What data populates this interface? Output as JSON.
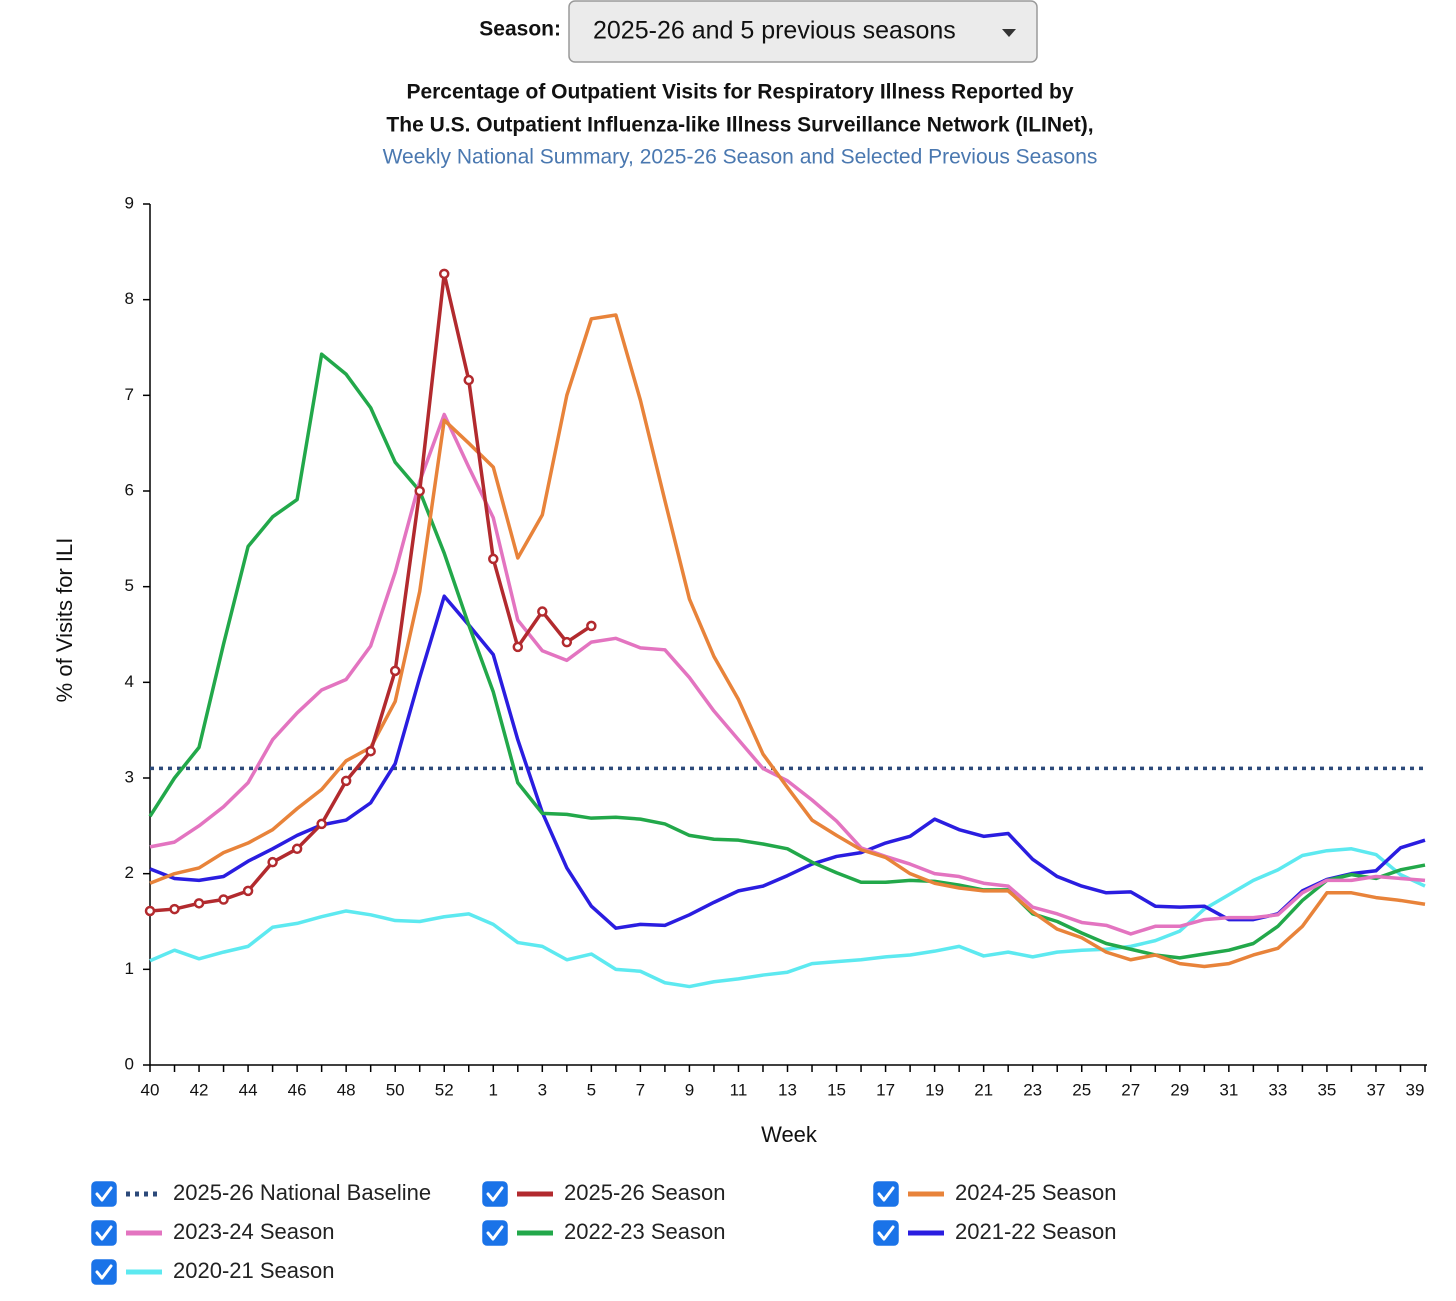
{
  "controls": {
    "season_label": "Season:",
    "season_value": "2025-26 and 5 previous seasons"
  },
  "chart_data": {
    "type": "line",
    "title": [
      "Percentage of Outpatient Visits for Respiratory Illness Reported by",
      "The U.S. Outpatient Influenza-like Illness Surveillance Network (ILINet),"
    ],
    "subtitle": "Weekly National Summary, 2025-26 Season and Selected Previous Seasons",
    "x_label": "Week",
    "y_label": "% of Visits for ILI",
    "categories": [
      "40",
      null,
      "42",
      null,
      "44",
      null,
      "46",
      null,
      "48",
      null,
      "50",
      null,
      "52",
      null,
      "1",
      null,
      "3",
      null,
      "5",
      null,
      "7",
      null,
      "9",
      null,
      "11",
      null,
      "13",
      null,
      "15",
      null,
      "17",
      null,
      "19",
      null,
      "21",
      null,
      "23",
      null,
      "25",
      null,
      "27",
      null,
      "29",
      null,
      "31",
      null,
      "33",
      null,
      "35",
      null,
      "37",
      null,
      "39"
    ],
    "ylim": [
      0,
      9
    ],
    "yticks": [
      0,
      1,
      2,
      3,
      4,
      5,
      6,
      7,
      8,
      9
    ],
    "baseline": {
      "name": "2025-26 National Baseline",
      "color": "#2c4a7a",
      "value": 3.1,
      "checked": true
    },
    "series": [
      {
        "name": "2025-26 Season",
        "color": "#b22a2e",
        "markers": true,
        "checked": true,
        "values": [
          1.61,
          1.63,
          1.69,
          1.73,
          1.82,
          2.12,
          2.26,
          2.52,
          2.97,
          3.28,
          4.12,
          6.0,
          8.27,
          7.16,
          5.29,
          4.37,
          4.74,
          4.42,
          4.59,
          null,
          null,
          null,
          null,
          null,
          null,
          null,
          null,
          null,
          null,
          null,
          null,
          null,
          null,
          null,
          null,
          null,
          null,
          null,
          null,
          null,
          null,
          null,
          null,
          null,
          null,
          null,
          null,
          null,
          null,
          null,
          null,
          null,
          null
        ]
      },
      {
        "name": "2024-25 Season",
        "color": "#e8833a",
        "checked": true,
        "values": [
          1.9,
          2.0,
          2.06,
          2.22,
          2.32,
          2.46,
          2.68,
          2.88,
          3.18,
          3.32,
          3.8,
          4.95,
          6.74,
          6.5,
          6.25,
          5.3,
          5.75,
          7.0,
          7.8,
          7.84,
          6.95,
          5.9,
          4.87,
          4.27,
          3.82,
          3.25,
          2.9,
          2.56,
          2.4,
          2.25,
          2.17,
          2.0,
          1.9,
          1.85,
          1.82,
          1.82,
          1.6,
          1.42,
          1.33,
          1.18,
          1.1,
          1.15,
          1.06,
          1.03,
          1.06,
          1.15,
          1.22,
          1.45,
          1.8,
          1.8,
          1.75,
          1.72,
          1.68
        ]
      },
      {
        "name": "2023-24 Season",
        "color": "#e374c0",
        "checked": true,
        "values": [
          2.28,
          2.33,
          2.5,
          2.7,
          2.95,
          3.4,
          3.68,
          3.92,
          4.03,
          4.38,
          5.15,
          6.1,
          6.8,
          6.25,
          5.72,
          4.65,
          4.33,
          4.23,
          4.42,
          4.46,
          4.36,
          4.34,
          4.05,
          3.7,
          3.4,
          3.1,
          2.97,
          2.77,
          2.55,
          2.27,
          2.18,
          2.1,
          2.0,
          1.97,
          1.9,
          1.87,
          1.65,
          1.58,
          1.49,
          1.46,
          1.37,
          1.45,
          1.45,
          1.52,
          1.54,
          1.54,
          1.57,
          1.8,
          1.93,
          1.93,
          1.97,
          1.95,
          1.93
        ]
      },
      {
        "name": "2022-23 Season",
        "color": "#22a84a",
        "checked": true,
        "values": [
          2.6,
          3.0,
          3.32,
          4.4,
          5.42,
          5.73,
          5.91,
          7.43,
          7.22,
          6.87,
          6.3,
          6.0,
          5.35,
          4.6,
          3.9,
          2.95,
          2.63,
          2.62,
          2.58,
          2.59,
          2.57,
          2.52,
          2.4,
          2.36,
          2.35,
          2.31,
          2.26,
          2.12,
          2.01,
          1.91,
          1.91,
          1.93,
          1.92,
          1.88,
          1.83,
          1.83,
          1.58,
          1.5,
          1.38,
          1.27,
          1.21,
          1.15,
          1.12,
          1.16,
          1.2,
          1.27,
          1.45,
          1.72,
          1.93,
          1.99,
          1.95,
          2.04,
          2.09
        ]
      },
      {
        "name": "2021-22 Season",
        "color": "#2a1de0",
        "checked": true,
        "values": [
          2.05,
          1.95,
          1.93,
          1.97,
          2.13,
          2.26,
          2.4,
          2.51,
          2.56,
          2.74,
          3.15,
          4.05,
          4.9,
          4.6,
          4.29,
          3.4,
          2.64,
          2.06,
          1.66,
          1.43,
          1.47,
          1.46,
          1.57,
          1.7,
          1.82,
          1.87,
          1.98,
          2.1,
          2.18,
          2.22,
          2.32,
          2.39,
          2.57,
          2.46,
          2.39,
          2.42,
          2.15,
          1.97,
          1.87,
          1.8,
          1.81,
          1.66,
          1.65,
          1.66,
          1.52,
          1.52,
          1.58,
          1.82,
          1.94,
          2.0,
          2.03,
          2.27,
          2.35
        ]
      },
      {
        "name": "2020-21 Season",
        "color": "#5de9f0",
        "checked": true,
        "values": [
          1.09,
          1.2,
          1.11,
          1.18,
          1.24,
          1.44,
          1.48,
          1.55,
          1.61,
          1.57,
          1.51,
          1.5,
          1.55,
          1.58,
          1.47,
          1.28,
          1.24,
          1.1,
          1.16,
          1.0,
          0.98,
          0.86,
          0.82,
          0.87,
          0.9,
          0.94,
          0.97,
          1.06,
          1.08,
          1.1,
          1.13,
          1.15,
          1.19,
          1.24,
          1.14,
          1.18,
          1.13,
          1.18,
          1.2,
          1.21,
          1.24,
          1.3,
          1.4,
          1.63,
          1.78,
          1.93,
          2.04,
          2.19,
          2.24,
          2.26,
          2.2,
          1.99,
          1.87
        ]
      }
    ]
  }
}
